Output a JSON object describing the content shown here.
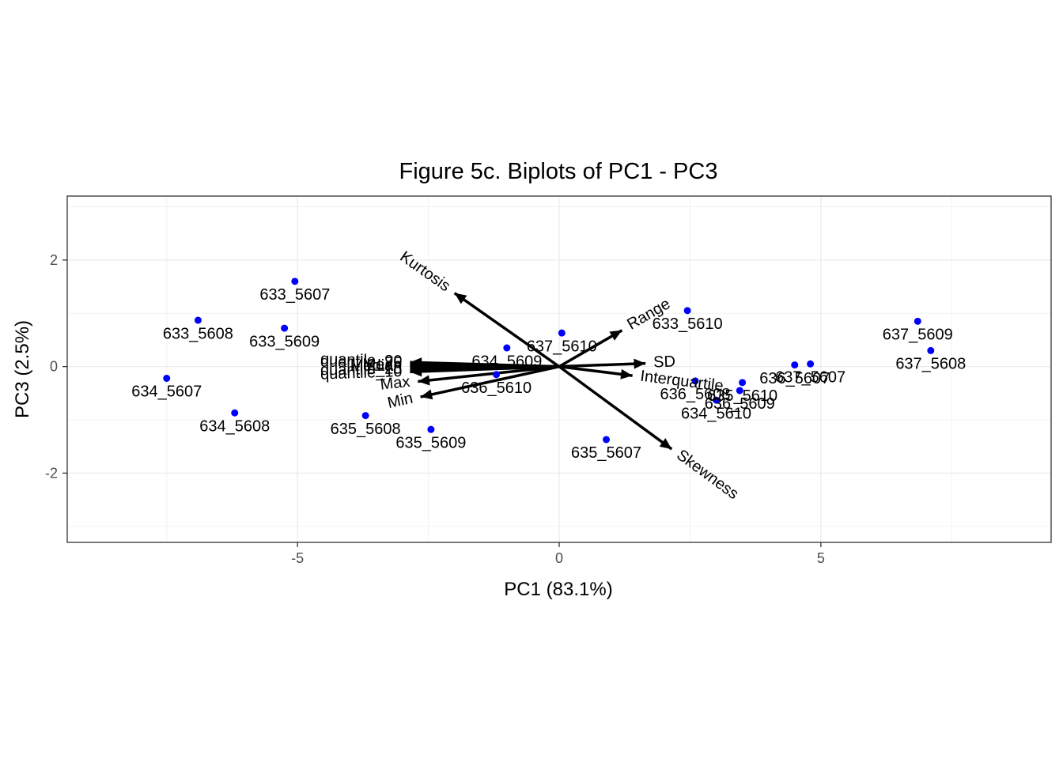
{
  "chart_data": {
    "type": "scatter",
    "subtype": "pca-biplot",
    "title": "Figure 5c. Biplots of PC1 - PC3",
    "xlabel": "PC1 (83.1%)",
    "ylabel": "PC3 (2.5%)",
    "xlim": [
      -9.4,
      9.4
    ],
    "ylim": [
      -3.3,
      3.2
    ],
    "x_ticks": [
      -5,
      0,
      5
    ],
    "x_tick_labels": [
      "-5",
      "0",
      "5"
    ],
    "y_ticks": [
      -2,
      0,
      2
    ],
    "y_tick_labels": [
      "-2",
      "0",
      "2"
    ],
    "grid": true,
    "theme": "bw",
    "point_color": "#0000ff",
    "arrow_color": "#000000",
    "points": [
      {
        "label": "633_5607",
        "x": -5.05,
        "y": 1.6
      },
      {
        "label": "633_5608",
        "x": -6.9,
        "y": 0.87
      },
      {
        "label": "633_5609",
        "x": -5.25,
        "y": 0.72
      },
      {
        "label": "634_5607",
        "x": -7.5,
        "y": -0.22
      },
      {
        "label": "634_5608",
        "x": -6.2,
        "y": -0.87
      },
      {
        "label": "635_5608",
        "x": -3.7,
        "y": -0.92
      },
      {
        "label": "635_5609",
        "x": -2.45,
        "y": -1.18
      },
      {
        "label": "634_5609",
        "x": -1.0,
        "y": 0.35
      },
      {
        "label": "636_5610",
        "x": -1.2,
        "y": -0.15
      },
      {
        "label": "637_5610",
        "x": 0.05,
        "y": 0.63
      },
      {
        "label": "635_5607",
        "x": 0.9,
        "y": -1.37
      },
      {
        "label": "633_5610",
        "x": 2.45,
        "y": 1.05
      },
      {
        "label": "636_5608",
        "x": 2.6,
        "y": -0.27
      },
      {
        "label": "634_5610",
        "x": 3.0,
        "y": -0.63
      },
      {
        "label": "636_5609",
        "x": 3.45,
        "y": -0.45
      },
      {
        "label": "635_5610",
        "x": 3.5,
        "y": -0.3
      },
      {
        "label": "636_5607",
        "x": 4.5,
        "y": 0.03
      },
      {
        "label": "637_5607",
        "x": 4.8,
        "y": 0.05
      },
      {
        "label": "637_5609",
        "x": 6.85,
        "y": 0.85
      },
      {
        "label": "637_5608",
        "x": 7.1,
        "y": 0.3
      }
    ],
    "loadings": [
      {
        "label": "Kurtosis",
        "x": -2.0,
        "y": 1.38
      },
      {
        "label": "Range",
        "x": 1.2,
        "y": 0.68
      },
      {
        "label": "SD",
        "x": 1.65,
        "y": 0.06
      },
      {
        "label": "Interquartile",
        "x": 1.4,
        "y": -0.17
      },
      {
        "label": "Skewness",
        "x": 2.15,
        "y": -1.55
      },
      {
        "label": "Min",
        "x": -2.65,
        "y": -0.57
      },
      {
        "label": "Max",
        "x": -2.7,
        "y": -0.28
      },
      {
        "label": "Mean",
        "x": -2.85,
        "y": 0.02
      },
      {
        "label": "Median",
        "x": -2.85,
        "y": 0.0
      },
      {
        "label": "quantile_25",
        "x": -2.85,
        "y": -0.05
      },
      {
        "label": "quantile_75",
        "x": -2.85,
        "y": 0.05
      },
      {
        "label": "quantile_10",
        "x": -2.85,
        "y": -0.1
      },
      {
        "label": "quantile_90",
        "x": -2.85,
        "y": 0.08
      }
    ]
  }
}
